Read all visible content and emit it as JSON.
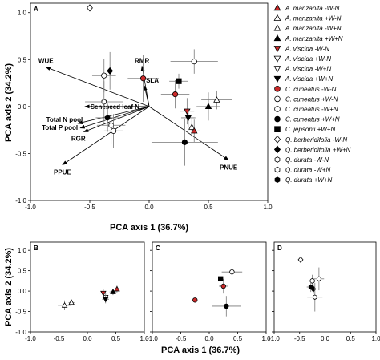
{
  "chart_data": [
    {
      "panel": "A",
      "type": "scatter",
      "xlabel": "PCA axis 1 (36.7%)",
      "ylabel": "PCA axis 2 (34.2%)",
      "xlim": [
        -1.0,
        1.0
      ],
      "ylim": [
        -1.0,
        1.1
      ],
      "xticks": [
        "-1.0",
        "-0.5",
        "0.0",
        "0.5",
        "1.0"
      ],
      "yticks": [
        "-1.0",
        "-0.5",
        "0.0",
        "0.5",
        "1.0"
      ],
      "vectors": [
        {
          "label": "WUE",
          "x": -0.87,
          "y": 0.42
        },
        {
          "label": "RMR",
          "x": -0.06,
          "y": 0.43
        },
        {
          "label": "SLA",
          "x": -0.04,
          "y": 0.22
        },
        {
          "label": "Senesced leaf N",
          "x": -0.54,
          "y": 0.0
        },
        {
          "label": "Total N pool",
          "x": -0.6,
          "y": -0.18
        },
        {
          "label": "Total P pool",
          "x": -0.58,
          "y": -0.23
        },
        {
          "label": "RGR",
          "x": -0.55,
          "y": -0.27
        },
        {
          "label": "PPUE",
          "x": -0.73,
          "y": -0.62
        },
        {
          "label": "PNUE",
          "x": 0.67,
          "y": -0.57
        }
      ],
      "points": [
        {
          "series": "Q. berberidifolia -W-N",
          "x": -0.5,
          "y": 1.05,
          "xerr": 0,
          "yerr": 0
        },
        {
          "series": "Q. durata -W+N",
          "x": -0.38,
          "y": 0.05,
          "xerr": 0.16,
          "yerr": 0.22
        },
        {
          "series": "Q. berberidifolia +W+N",
          "x": -0.33,
          "y": 0.38,
          "xerr": 0.14,
          "yerr": 0.2
        },
        {
          "series": "Q. berberidifolia +W-N",
          "x": -0.38,
          "y": 0.33,
          "xerr": 0.1,
          "yerr": 0.18
        },
        {
          "series": "Q. durata +W+N",
          "x": -0.35,
          "y": -0.12,
          "xerr": 0.1,
          "yerr": 0.15
        },
        {
          "series": "Q. durata -W-N",
          "x": -0.32,
          "y": -0.2,
          "xerr": 0.12,
          "yerr": 0.2
        },
        {
          "series": "Q. durata +W-N",
          "x": -0.3,
          "y": -0.26,
          "xerr": 0.08,
          "yerr": 0.18
        },
        {
          "series": "C. cuneatus -W-N",
          "x": -0.05,
          "y": 0.3,
          "xerr": 0.13,
          "yerr": 0.25
        },
        {
          "series": "C. cuneatus -W+N",
          "x": 0.38,
          "y": 0.48,
          "xerr": 0.2,
          "yerr": 0.13
        },
        {
          "series": "C. jepsonii +W+N",
          "x": 0.25,
          "y": 0.27,
          "xerr": 0.08,
          "yerr": 0.08
        },
        {
          "series": "C. cuneatus -W-N",
          "x": 0.22,
          "y": 0.13,
          "xerr": 0.12,
          "yerr": 0.15
        },
        {
          "series": "C. cuneatus +W+N",
          "x": 0.3,
          "y": -0.38,
          "xerr": 0.28,
          "yerr": 0.25
        },
        {
          "series": "A. manzanita +W-N",
          "x": 0.57,
          "y": 0.07,
          "xerr": 0.13,
          "yerr": 0.1
        },
        {
          "series": "A. manzanita +W+N",
          "x": 0.5,
          "y": 0.0,
          "xerr": 0.1,
          "yerr": 0.15
        },
        {
          "series": "A. viscida -W-N",
          "x": 0.32,
          "y": -0.05,
          "xerr": 0.06,
          "yerr": 0.14
        },
        {
          "series": "A. viscida +W+N",
          "x": 0.33,
          "y": -0.12,
          "xerr": 0.06,
          "yerr": 0.1
        },
        {
          "series": "A. manzanita -W+N",
          "x": 0.36,
          "y": -0.22,
          "xerr": 0.05,
          "yerr": 0.1
        },
        {
          "series": "A. manzanita -W-N",
          "x": 0.38,
          "y": -0.26,
          "xerr": 0.05,
          "yerr": 0.12
        }
      ]
    },
    {
      "panel": "B",
      "type": "scatter",
      "xlim": [
        -1.0,
        1.0
      ],
      "ylim": [
        -1.0,
        1.2
      ],
      "xticks": [
        "-1.0",
        "-0.5",
        "0.0",
        "0.5",
        "1.0"
      ],
      "yticks": [
        "-1.0",
        "-0.5",
        "0.0",
        "0.5",
        "1.0"
      ],
      "points": [
        {
          "series": "A. manzanita -W+N",
          "x": -0.4,
          "y": -0.35,
          "xerr": 0.12,
          "yerr": 0.12
        },
        {
          "series": "A. manzanita +W-N",
          "x": -0.28,
          "y": -0.28,
          "xerr": 0.05,
          "yerr": 0.05
        },
        {
          "series": "A. viscida -W-N",
          "x": 0.28,
          "y": -0.05,
          "xerr": 0.06,
          "yerr": 0.1
        },
        {
          "series": "A. viscida +W-N",
          "x": 0.32,
          "y": -0.15,
          "xerr": 0.06,
          "yerr": 0.1
        },
        {
          "series": "A. viscida +W+N",
          "x": 0.32,
          "y": -0.2,
          "xerr": 0.06,
          "yerr": 0.1
        },
        {
          "series": "A. manzanita +W+N",
          "x": 0.45,
          "y": -0.02,
          "xerr": 0.06,
          "yerr": 0.08
        },
        {
          "series": "A. manzanita -W-N",
          "x": 0.52,
          "y": 0.05,
          "xerr": 0.1,
          "yerr": 0.08
        }
      ]
    },
    {
      "panel": "C",
      "type": "scatter",
      "xlim": [
        -1.0,
        1.0
      ],
      "ylim": [
        -1.0,
        1.2
      ],
      "xticks": [
        "-1.0",
        "-0.5",
        "0.0",
        "0.5",
        "1.0"
      ],
      "points": [
        {
          "series": "C. cuneatus -W-N",
          "x": -0.25,
          "y": -0.22,
          "xerr": 0.04,
          "yerr": 0.04
        },
        {
          "series": "C. jepsonii +W+N",
          "x": 0.2,
          "y": 0.3,
          "xerr": 0.04,
          "yerr": 0.04
        },
        {
          "series": "C. cuneatus -W-N",
          "x": 0.25,
          "y": 0.12,
          "xerr": 0.08,
          "yerr": 0.18
        },
        {
          "series": "C. cuneatus -W+N",
          "x": 0.4,
          "y": 0.47,
          "xerr": 0.18,
          "yerr": 0.12
        },
        {
          "series": "C. cuneatus +W+N",
          "x": 0.3,
          "y": -0.37,
          "xerr": 0.25,
          "yerr": 0.25
        }
      ]
    },
    {
      "panel": "D",
      "type": "scatter",
      "xlim": [
        -1.0,
        1.0
      ],
      "ylim": [
        -1.0,
        1.2
      ],
      "xticks": [
        "-1.0",
        "-0.5",
        "0.0",
        "0.5",
        "1.0"
      ],
      "points": [
        {
          "series": "Q. berberidifolia -W-N",
          "x": -0.48,
          "y": 0.77,
          "xerr": 0,
          "yerr": 0
        },
        {
          "series": "Q. durata +W-N",
          "x": -0.25,
          "y": 0.25,
          "xerr": 0.08,
          "yerr": 0.15
        },
        {
          "series": "Q. durata +W+N",
          "x": -0.28,
          "y": 0.1,
          "xerr": 0.08,
          "yerr": 0.12
        },
        {
          "series": "Q. berberidifolia +W+N",
          "x": -0.23,
          "y": 0.05,
          "xerr": 0.08,
          "yerr": 0.12
        },
        {
          "series": "Q. durata -W+N",
          "x": -0.12,
          "y": 0.3,
          "xerr": 0.1,
          "yerr": 0.28
        },
        {
          "series": "Q. durata -W-N",
          "x": -0.2,
          "y": -0.15,
          "xerr": 0.15,
          "yerr": 0.35
        }
      ]
    }
  ],
  "legend": [
    {
      "label": "A. manzanita -W-N",
      "marker": "triangle-up",
      "fill": "#cc2a2a"
    },
    {
      "label": "A. manzanita +W-N",
      "marker": "triangle-up",
      "fill": "#ffffff"
    },
    {
      "label": "A. manzanita -W+N",
      "marker": "triangle-up",
      "fill": "#ffffff"
    },
    {
      "label": "A. manzanita +W+N",
      "marker": "triangle-up",
      "fill": "#000000"
    },
    {
      "label": "A. viscida -W-N",
      "marker": "triangle-down",
      "fill": "#cc2a2a"
    },
    {
      "label": "A. viscida +W-N",
      "marker": "triangle-down",
      "fill": "#ffffff"
    },
    {
      "label": "A. viscida -W+N",
      "marker": "triangle-down",
      "fill": "#ffffff"
    },
    {
      "label": "A. viscida +W+N",
      "marker": "triangle-down",
      "fill": "#000000"
    },
    {
      "label": "C. cuneatus -W-N",
      "marker": "circle",
      "fill": "#cc2a2a"
    },
    {
      "label": "C. cuneatus +W-N",
      "marker": "circle",
      "fill": "#ffffff"
    },
    {
      "label": "C. cuneatus -W+N",
      "marker": "circle",
      "fill": "#ffffff"
    },
    {
      "label": "C. cuneatus +W+N",
      "marker": "circle",
      "fill": "#000000"
    },
    {
      "label": "C. jepsonii +W+N",
      "marker": "square",
      "fill": "#000000"
    },
    {
      "label": "Q. berberidifolia -W-N",
      "marker": "diamond",
      "fill": "#ffffff"
    },
    {
      "label": "Q. berberidifolia +W+N",
      "marker": "diamond",
      "fill": "#000000"
    },
    {
      "label": "Q. durata -W-N",
      "marker": "hexagon",
      "fill": "#ffffff"
    },
    {
      "label": "Q. durata -W+N",
      "marker": "hexagon",
      "fill": "#ffffff"
    },
    {
      "label": "Q. durata +W+N",
      "marker": "hexagon",
      "fill": "#000000"
    }
  ],
  "colors": {
    "red": "#cc2a2a",
    "black": "#000000",
    "white": "#ffffff",
    "error_bar": "#777777"
  }
}
